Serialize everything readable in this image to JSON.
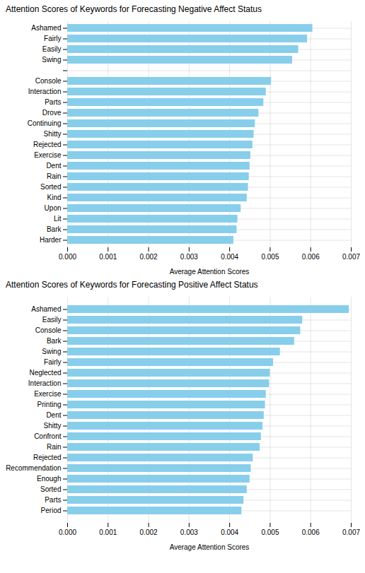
{
  "chart_data": [
    {
      "type": "bar",
      "orientation": "horizontal",
      "title": "Attention Scores of Keywords for Forecasting Negative Affect Status",
      "x_label": "Average Attention Scores",
      "categories": [
        "Ashamed",
        "Fairly",
        "Easily",
        "Swing",
        null,
        "Console",
        "Interaction",
        "Parts",
        "Drove",
        "Continuing",
        "Shitty",
        "Rejected",
        "Exercise",
        "Dent",
        "Rain",
        "Sorted",
        "Kind",
        "Upon",
        "Lit",
        "Bark",
        "Harder"
      ],
      "values": [
        0.00605,
        0.00592,
        0.0057,
        0.00555,
        null,
        0.00503,
        0.0049,
        0.00484,
        0.00472,
        0.00463,
        0.0046,
        0.00457,
        0.00452,
        0.0045,
        0.00448,
        0.00446,
        0.00443,
        0.00428,
        0.0042,
        0.00418,
        0.0041
      ],
      "color": "#87CEEB",
      "xlim": [
        0,
        0.007
      ],
      "xticks": [
        {
          "value": 0,
          "label": "0.000"
        },
        0.001,
        0.002,
        0.003,
        0.004,
        0.005,
        0.006,
        0.007
      ],
      "grid": true
    },
    {
      "type": "bar",
      "orientation": "horizontal",
      "title": "Attention Scores of Keywords for Forecasting Positive Affect Status",
      "x_label": "Average Attention Scores",
      "categories": [
        "Ashamed",
        "Easily",
        "Console",
        "Bark",
        "Swing",
        "Fairly",
        "Neglected",
        "Interaction",
        "Exercise",
        "Printing",
        "Dent",
        "Shitty",
        "Confront",
        "Rain",
        "Rejected",
        "Recommendation",
        "Enough",
        "Sorted",
        "Parts",
        "Period"
      ],
      "values": [
        0.00695,
        0.0058,
        0.00575,
        0.0056,
        0.00525,
        0.00508,
        0.005,
        0.00498,
        0.0049,
        0.00488,
        0.00485,
        0.00482,
        0.00478,
        0.00475,
        0.00458,
        0.00453,
        0.0045,
        0.00443,
        0.00435,
        0.0043
      ],
      "color": "#87CEEB",
      "xlim": [
        0,
        0.007
      ],
      "xticks": [
        {
          "value": 0,
          "label": "0.000"
        },
        0.001,
        0.002,
        0.003,
        0.004,
        0.005,
        0.006,
        0.007
      ],
      "grid": true
    }
  ]
}
